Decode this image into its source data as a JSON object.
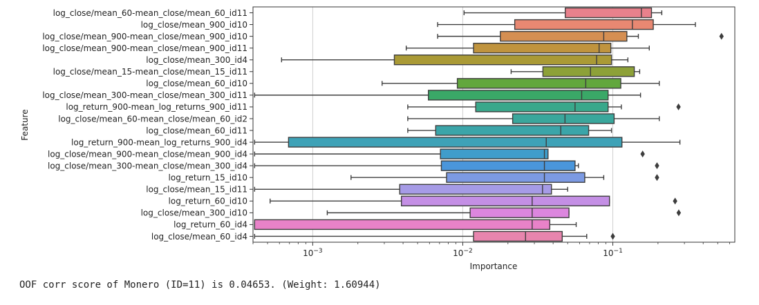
{
  "chart_data": {
    "type": "boxplot",
    "orientation": "horizontal",
    "xlabel": "Importance",
    "ylabel": "Feature",
    "xscale": "log",
    "xlim": [
      0.0004,
      0.65
    ],
    "xticks": [
      {
        "value": 0.001,
        "base": "10",
        "exp": "−3"
      },
      {
        "value": 0.01,
        "base": "10",
        "exp": "−2"
      },
      {
        "value": 0.1,
        "base": "10",
        "exp": "−1"
      }
    ],
    "grid": "vertical",
    "features": [
      {
        "name": "log_close/mean_60-mean_close/mean_60_id11",
        "color": "#e8818c",
        "whisker_low": 0.0102,
        "q1": 0.0482,
        "median": 0.155,
        "q3": 0.181,
        "whisker_high": 0.212,
        "outliers": []
      },
      {
        "name": "log_close/mean_900_id10",
        "color": "#e88872",
        "whisker_low": 0.0068,
        "q1": 0.0222,
        "median": 0.135,
        "q3": 0.186,
        "whisker_high": 0.355,
        "outliers": []
      },
      {
        "name": "log_close/mean_900-mean_close/mean_900_id10",
        "color": "#d58f52",
        "whisker_low": 0.0068,
        "q1": 0.0178,
        "median": 0.087,
        "q3": 0.124,
        "whisker_high": 0.148,
        "outliers": [
          0.53
        ]
      },
      {
        "name": "log_close/mean_900-mean_close/mean_900_id11",
        "color": "#c0943e",
        "whisker_low": 0.0042,
        "q1": 0.0118,
        "median": 0.081,
        "q3": 0.097,
        "whisker_high": 0.175,
        "outliers": []
      },
      {
        "name": "log_close/mean_300_id4",
        "color": "#aa9a36",
        "whisker_low": 0.00062,
        "q1": 0.0035,
        "median": 0.078,
        "q3": 0.098,
        "whisker_high": 0.126,
        "outliers": []
      },
      {
        "name": "log_close/mean_15-mean_close/mean_15_id11",
        "color": "#8da138",
        "whisker_low": 0.021,
        "q1": 0.0342,
        "median": 0.071,
        "q3": 0.139,
        "whisker_high": 0.151,
        "outliers": []
      },
      {
        "name": "log_close/mean_60_id10",
        "color": "#62a73d",
        "whisker_low": 0.0029,
        "q1": 0.0092,
        "median": 0.066,
        "q3": 0.113,
        "whisker_high": 0.204,
        "outliers": []
      },
      {
        "name": "log_close/mean_300-mean_close/mean_300_id11",
        "color": "#3aa867",
        "whisker_low": 0.00041,
        "q1": 0.0059,
        "median": 0.062,
        "q3": 0.093,
        "whisker_high": 0.153,
        "outliers": []
      },
      {
        "name": "log_return_900-mean_log_returns_900_id11",
        "color": "#39a88b",
        "whisker_low": 0.0043,
        "q1": 0.0122,
        "median": 0.056,
        "q3": 0.093,
        "whisker_high": 0.114,
        "outliers": [
          0.274
        ]
      },
      {
        "name": "log_close/mean_60-mean_close/mean_60_id2",
        "color": "#3aa79c",
        "whisker_low": 0.0043,
        "q1": 0.0215,
        "median": 0.048,
        "q3": 0.102,
        "whisker_high": 0.204,
        "outliers": []
      },
      {
        "name": "log_close/mean_60_id11",
        "color": "#3ba5a9",
        "whisker_low": 0.0043,
        "q1": 0.0066,
        "median": 0.045,
        "q3": 0.069,
        "whisker_high": 0.098,
        "outliers": []
      },
      {
        "name": "log_return_900-mean_log_returns_900_id4",
        "color": "#3ea2b7",
        "whisker_low": 0.00041,
        "q1": 0.00069,
        "median": 0.036,
        "q3": 0.115,
        "whisker_high": 0.28,
        "outliers": []
      },
      {
        "name": "log_close/mean_900-mean_close/mean_900_id4",
        "color": "#3f9dcb",
        "whisker_low": 0.00041,
        "q1": 0.0071,
        "median": 0.035,
        "q3": 0.037,
        "whisker_high": 0.037,
        "outliers": [
          0.158
        ]
      },
      {
        "name": "log_close/mean_300-mean_close/mean_300_id4",
        "color": "#4a96db",
        "whisker_low": 0.00041,
        "q1": 0.0072,
        "median": 0.035,
        "q3": 0.056,
        "whisker_high": 0.059,
        "outliers": [
          0.197
        ]
      },
      {
        "name": "log_return_15_id10",
        "color": "#7c9ae3",
        "whisker_low": 0.0018,
        "q1": 0.0078,
        "median": 0.035,
        "q3": 0.065,
        "whisker_high": 0.087,
        "outliers": [
          0.197
        ]
      },
      {
        "name": "log_close/mean_15_id11",
        "color": "#a69be6",
        "whisker_low": 0.00041,
        "q1": 0.0038,
        "median": 0.034,
        "q3": 0.039,
        "whisker_high": 0.05,
        "outliers": []
      },
      {
        "name": "log_return_60_id10",
        "color": "#c48fe5",
        "whisker_low": 0.00052,
        "q1": 0.0039,
        "median": 0.029,
        "q3": 0.095,
        "whisker_high": 0.095,
        "outliers": [
          0.26
        ]
      },
      {
        "name": "log_close/mean_300_id10",
        "color": "#dc86de",
        "whisker_low": 0.00125,
        "q1": 0.0112,
        "median": 0.029,
        "q3": 0.051,
        "whisker_high": 0.051,
        "outliers": [
          0.275
        ]
      },
      {
        "name": "log_return_60_id4",
        "color": "#e882c8",
        "whisker_low": 0.00041,
        "q1": 0.00041,
        "median": 0.029,
        "q3": 0.038,
        "whisker_high": 0.057,
        "outliers": []
      },
      {
        "name": "log_close/mean_60_id4",
        "color": "#e885ae",
        "whisker_low": 0.00041,
        "q1": 0.0118,
        "median": 0.0262,
        "q3": 0.046,
        "whisker_high": 0.067,
        "outliers": [
          0.1
        ]
      }
    ]
  },
  "output_text": "OOF corr score of Monero (ID=11) is 0.04653. (Weight: 1.60944)"
}
